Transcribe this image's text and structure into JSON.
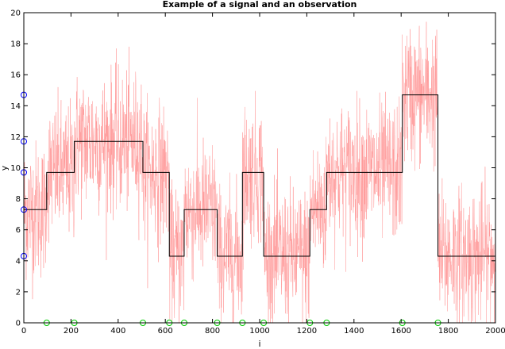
{
  "chart_data": {
    "type": "line",
    "title": "Example of a signal and an observation",
    "xlabel": "i",
    "ylabel": "y",
    "xlim": [
      0,
      2000
    ],
    "ylim": [
      0,
      20
    ],
    "xticks": [
      0,
      200,
      400,
      600,
      800,
      1000,
      1200,
      1400,
      1600,
      1800,
      2000
    ],
    "yticks": [
      0,
      2,
      4,
      6,
      8,
      10,
      12,
      14,
      16,
      18,
      20
    ],
    "grid": false,
    "legend": "none",
    "colors": {
      "observation": "#ff9a9a",
      "signal": "#000000",
      "level_markers": "#0000ff",
      "changepoint_markers": "#00cc00"
    },
    "series": [
      {
        "kind": "noisy_observation",
        "noise_amplitude": 2.2,
        "follows": "step_signal"
      },
      {
        "kind": "step_signal",
        "segments": [
          {
            "x0": 0,
            "x1": 97,
            "y": 7.3
          },
          {
            "x0": 97,
            "x1": 214,
            "y": 9.7
          },
          {
            "x0": 214,
            "x1": 505,
            "y": 11.7
          },
          {
            "x0": 505,
            "x1": 617,
            "y": 9.7
          },
          {
            "x0": 617,
            "x1": 680,
            "y": 4.3
          },
          {
            "x0": 680,
            "x1": 820,
            "y": 7.3
          },
          {
            "x0": 820,
            "x1": 927,
            "y": 4.3
          },
          {
            "x0": 927,
            "x1": 1017,
            "y": 9.7
          },
          {
            "x0": 1017,
            "x1": 1213,
            "y": 4.3
          },
          {
            "x0": 1213,
            "x1": 1284,
            "y": 7.3
          },
          {
            "x0": 1284,
            "x1": 1605,
            "y": 9.7
          },
          {
            "x0": 1605,
            "x1": 1756,
            "y": 14.7
          },
          {
            "x0": 1756,
            "x1": 2000,
            "y": 4.3
          }
        ]
      },
      {
        "kind": "level_markers",
        "x": 0,
        "values": [
          4.3,
          7.3,
          9.7,
          11.7,
          14.7
        ]
      },
      {
        "kind": "changepoint_markers",
        "y": 0,
        "values": [
          97,
          214,
          505,
          617,
          680,
          820,
          927,
          1017,
          1213,
          1284,
          1605,
          1756
        ]
      }
    ]
  }
}
